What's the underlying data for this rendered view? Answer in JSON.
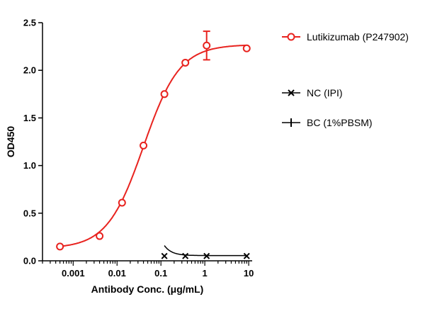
{
  "chart_data": {
    "type": "scatter",
    "title": "",
    "xlabel": "Antibody Conc. (μg/mL)",
    "ylabel": "OD450",
    "xscale": "log",
    "xlim": [
      0.0002,
      12
    ],
    "ylim": [
      0,
      2.5
    ],
    "x_ticks": [
      0.001,
      0.01,
      0.1,
      1,
      10
    ],
    "x_tick_labels": [
      "0.001",
      "0.01",
      "0.1",
      "1",
      "10"
    ],
    "y_ticks": [
      0.0,
      0.5,
      1.0,
      1.5,
      2.0,
      2.5
    ],
    "y_tick_labels": [
      "0.0",
      "0.5",
      "1.0",
      "1.5",
      "2.0",
      "2.5"
    ],
    "grid": false,
    "legend_position": "right",
    "series": [
      {
        "name": "Lutikizumab (P247902)",
        "color": "#e8231f",
        "marker": "circle",
        "x": [
          0.0005,
          0.004,
          0.013,
          0.04,
          0.12,
          0.36,
          1.1,
          9
        ],
        "y": [
          0.15,
          0.26,
          0.61,
          1.21,
          1.75,
          2.08,
          2.26,
          2.23
        ],
        "error": [
          0,
          0,
          0,
          0,
          0,
          0,
          0.15,
          0
        ],
        "fit": {
          "bottom": 0.13,
          "top": 2.27,
          "ec50": 0.04,
          "hill": 1.05
        }
      },
      {
        "name": "NC (IPI)",
        "color": "#000000",
        "marker": "x",
        "x": [
          0.12,
          0.36,
          1.1,
          9
        ],
        "y": [
          0.05,
          0.05,
          0.05,
          0.05
        ],
        "fit": {
          "type": "decay",
          "plateau": 0.055,
          "start": 0.16
        }
      },
      {
        "name": "BC (1%PBSM)",
        "color": "#000000",
        "marker": "plus",
        "x": [],
        "y": []
      }
    ]
  }
}
